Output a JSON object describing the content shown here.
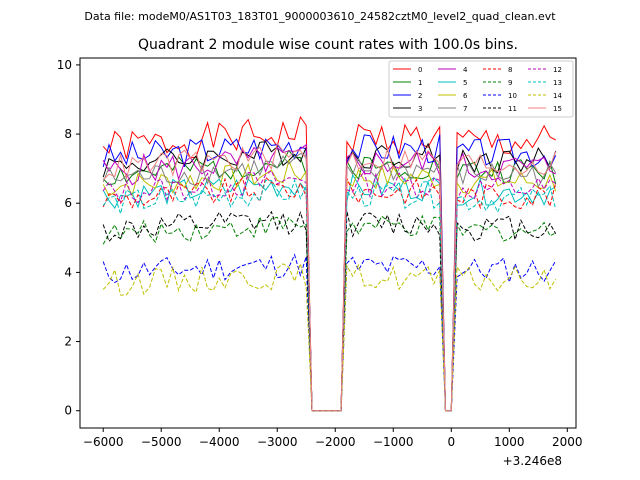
{
  "suptitle": "Data file: modeM0/AS1T03_183T01_9000003610_24582cztM0_level2_quad_clean.evt",
  "chart_data": {
    "type": "line",
    "title": "Quadrant 2 module wise count rates with 100.0s bins.",
    "xlabel": "",
    "ylabel": "",
    "x_offset_label": "+3.246e8",
    "xlim": [
      -6400,
      2150
    ],
    "ylim": [
      -0.5,
      10.2
    ],
    "x_ticks": [
      -6000,
      -5000,
      -4000,
      -3000,
      -2000,
      -1000,
      0,
      1000,
      2000
    ],
    "x_tick_labels": [
      "−6000",
      "−5000",
      "−4000",
      "−3000",
      "−2000",
      "−1000",
      "0",
      "1000",
      "2000"
    ],
    "y_ticks": [
      0,
      2,
      4,
      6,
      8,
      10
    ],
    "y_tick_labels": [
      "0",
      "2",
      "4",
      "6",
      "8",
      "10"
    ],
    "legend_position": "top-right",
    "series": [
      {
        "name": "0",
        "color": "#ff0000",
        "dashed": false,
        "base": 7.6,
        "amp": 0.45,
        "seed": 1
      },
      {
        "name": "1",
        "color": "#008000",
        "dashed": false,
        "base": 6.8,
        "amp": 0.35,
        "seed": 2
      },
      {
        "name": "2",
        "color": "#0000ff",
        "dashed": false,
        "base": 7.3,
        "amp": 0.4,
        "seed": 3
      },
      {
        "name": "3",
        "color": "#000000",
        "dashed": false,
        "base": 7.1,
        "amp": 0.35,
        "seed": 4
      },
      {
        "name": "4",
        "color": "#bf00bf",
        "dashed": false,
        "base": 6.9,
        "amp": 0.4,
        "seed": 5
      },
      {
        "name": "5",
        "color": "#00bfbf",
        "dashed": false,
        "base": 6.2,
        "amp": 0.35,
        "seed": 6
      },
      {
        "name": "6",
        "color": "#bfbf00",
        "dashed": false,
        "base": 6.5,
        "amp": 0.35,
        "seed": 7
      },
      {
        "name": "7",
        "color": "#808080",
        "dashed": false,
        "base": 6.7,
        "amp": 0.35,
        "seed": 8
      },
      {
        "name": "8",
        "color": "#ff0000",
        "dashed": true,
        "base": 6.1,
        "amp": 0.35,
        "seed": 9
      },
      {
        "name": "9",
        "color": "#008000",
        "dashed": true,
        "base": 5.1,
        "amp": 0.3,
        "seed": 10
      },
      {
        "name": "10",
        "color": "#0000ff",
        "dashed": true,
        "base": 4.0,
        "amp": 0.35,
        "seed": 11
      },
      {
        "name": "11",
        "color": "#000000",
        "dashed": true,
        "base": 5.2,
        "amp": 0.35,
        "seed": 12
      },
      {
        "name": "12",
        "color": "#bf00bf",
        "dashed": true,
        "base": 6.3,
        "amp": 0.35,
        "seed": 13
      },
      {
        "name": "13",
        "color": "#00bfbf",
        "dashed": true,
        "base": 6.0,
        "amp": 0.35,
        "seed": 14
      },
      {
        "name": "14",
        "color": "#bfbf00",
        "dashed": true,
        "base": 3.7,
        "amp": 0.35,
        "seed": 15
      },
      {
        "name": "15",
        "color": "#f08080",
        "dashed": false,
        "base": 7.0,
        "amp": 0.35,
        "seed": 16
      }
    ],
    "segments": [
      {
        "start": -6000,
        "end": -2500,
        "step": 100,
        "trend": 0.00012
      },
      {
        "start": -2450,
        "end": -2450,
        "step": 100,
        "trend": 0
      },
      {
        "start": -1800,
        "end": -200,
        "step": 100,
        "trend": 0
      },
      {
        "start": 100,
        "end": 1800,
        "step": 100,
        "trend": 0
      }
    ],
    "zero_points": [
      -2400,
      -2300,
      -2200,
      -2100,
      -2000,
      -1900,
      -100,
      0
    ]
  }
}
